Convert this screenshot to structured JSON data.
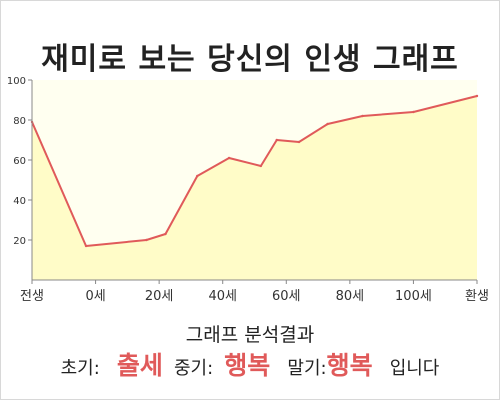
{
  "title": "재미로 보는 당신의 인생 그래프",
  "chart_data": {
    "type": "area",
    "categories": [
      "전생",
      "0세",
      "20세",
      "40세",
      "60세",
      "80세",
      "100세",
      "환생"
    ],
    "x_positions": [
      -20,
      0,
      20,
      40,
      60,
      80,
      100,
      120
    ],
    "x": [
      -20,
      -3,
      16,
      22,
      32,
      42,
      52,
      57,
      64,
      73,
      84,
      100,
      120
    ],
    "values": [
      79,
      17,
      20,
      23,
      52,
      61,
      57,
      70,
      69,
      78,
      82,
      84,
      92
    ],
    "ylim": [
      0,
      100
    ],
    "yticks": [
      20,
      40,
      60,
      80,
      100
    ],
    "grid": false,
    "colors": {
      "line": "#e05a5a",
      "fill": "#fffcc8",
      "background": "#fffff0"
    }
  },
  "result": {
    "heading": "그래프 분석결과",
    "early_label": "초기:",
    "early_value": "출세",
    "middle_label": "중기:",
    "middle_value": "행복",
    "late_label": "말기:",
    "late_value": "행복",
    "suffix": "입니다"
  }
}
